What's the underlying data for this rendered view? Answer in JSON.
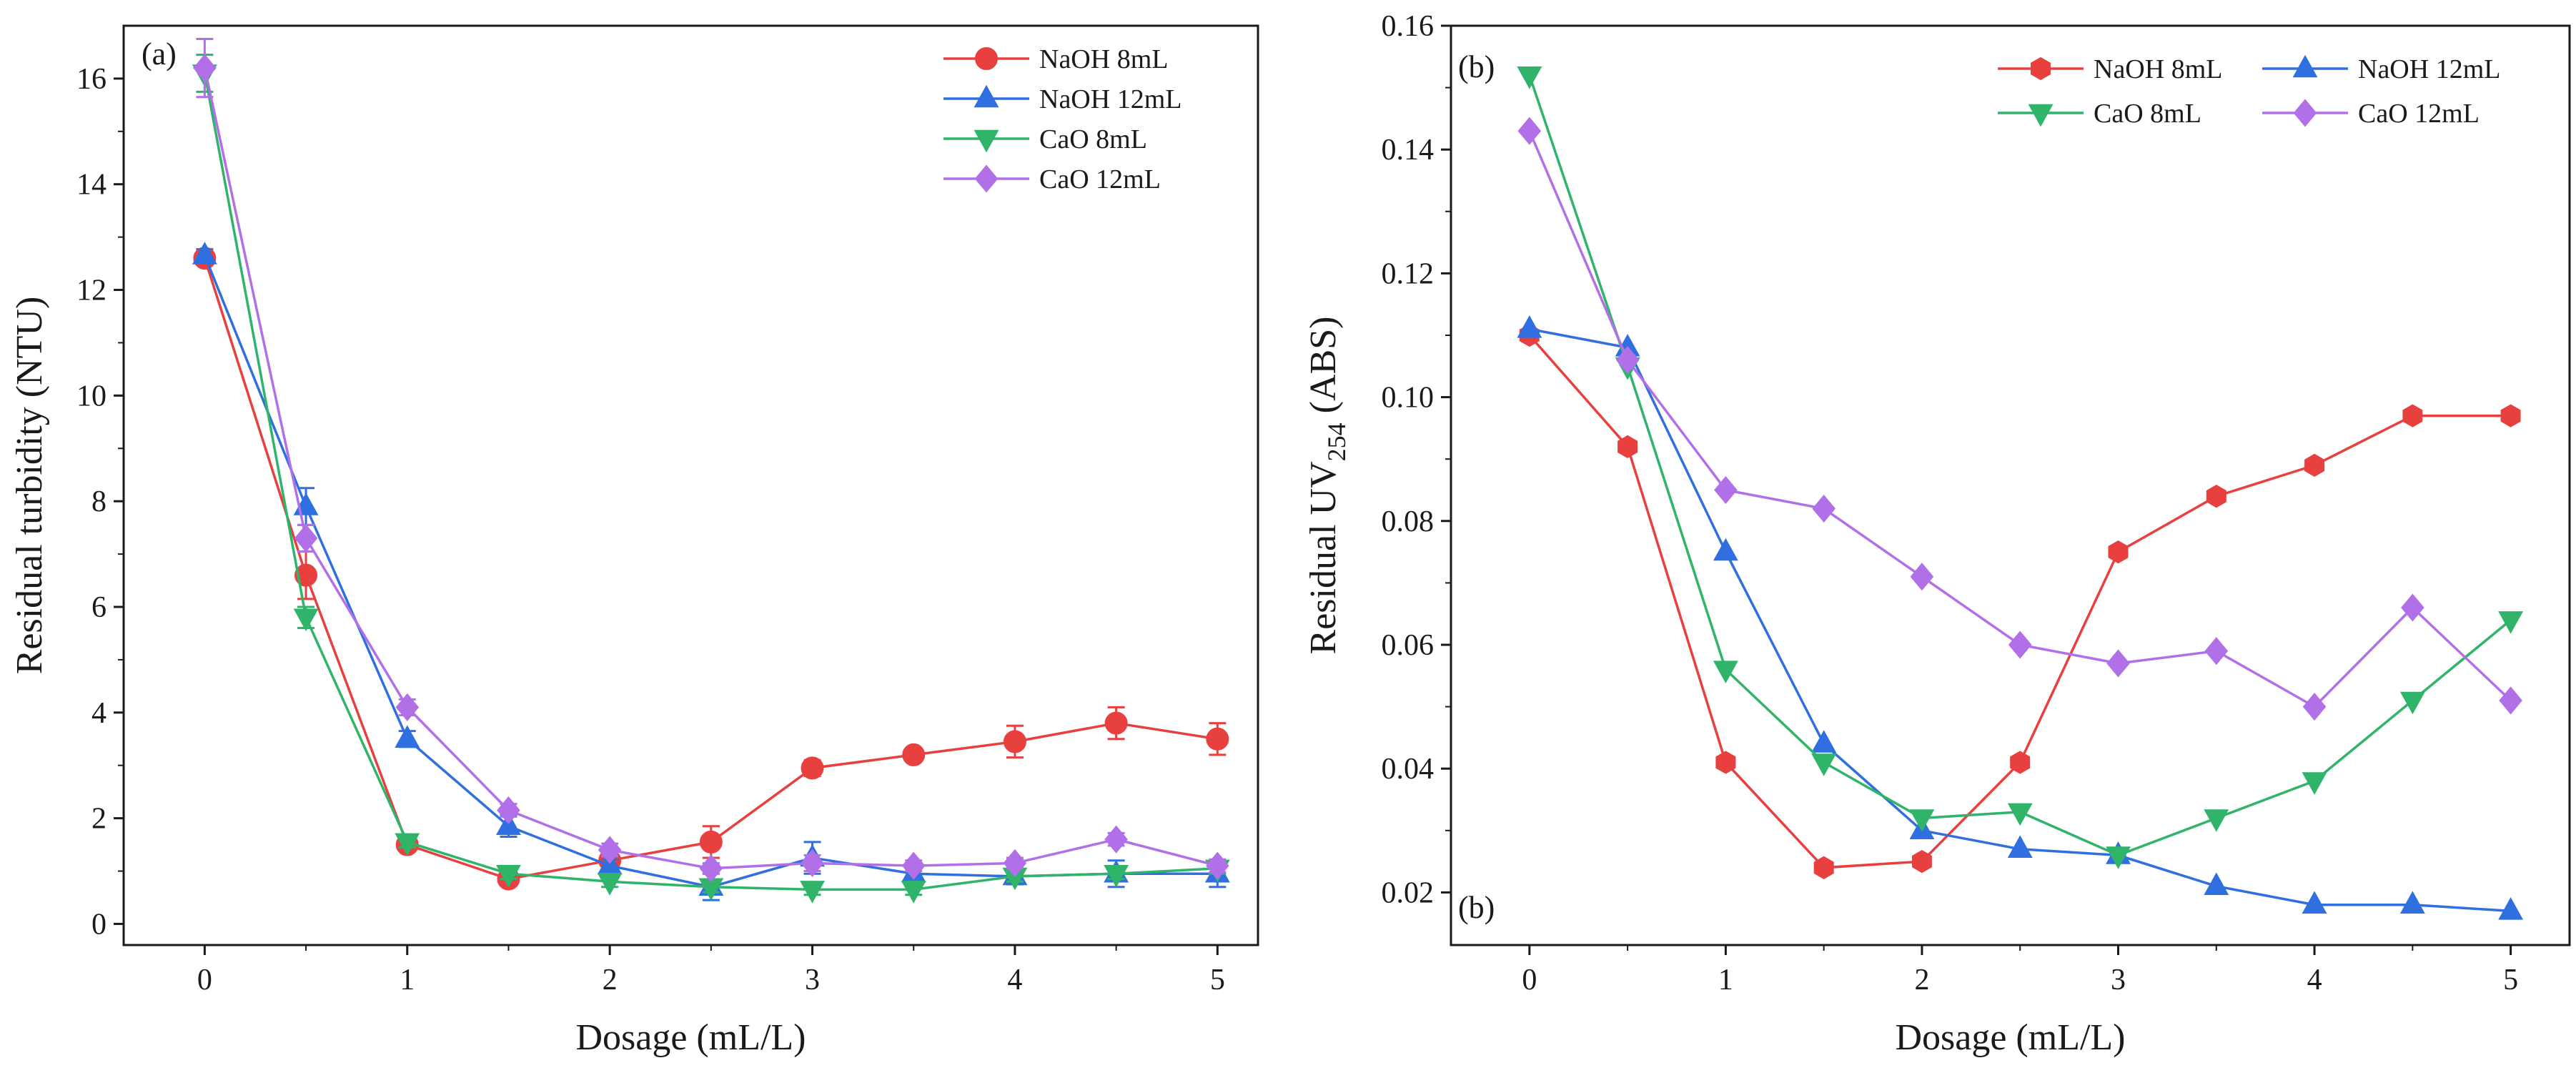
{
  "chart_data": [
    {
      "type": "line",
      "panel_label": "(a)",
      "xlabel": "Dosage (mL/L)",
      "ylabel": "Residual turbidity (NTU)",
      "xlim": [
        -0.4,
        5.2
      ],
      "ylim": [
        -0.4,
        17.0
      ],
      "xticks": [
        0,
        1,
        2,
        3,
        4,
        5
      ],
      "yticks": [
        0,
        2,
        4,
        6,
        8,
        10,
        12,
        14,
        16
      ],
      "legend_position": "top-right",
      "legend_columns": 1,
      "grid": false,
      "x": [
        0,
        0.5,
        1,
        1.5,
        2,
        2.5,
        3,
        3.5,
        4,
        4.5,
        5
      ],
      "series": [
        {
          "name": "NaOH 8mL",
          "color": "#e8403f",
          "marker": "circle",
          "values": [
            12.6,
            6.6,
            1.5,
            0.85,
            1.2,
            1.55,
            2.95,
            3.2,
            3.45,
            3.8,
            3.5
          ],
          "errors": [
            0.1,
            0.45,
            0.12,
            0.12,
            0.12,
            0.3,
            0.15,
            0.1,
            0.3,
            0.3,
            0.3
          ]
        },
        {
          "name": "NaOH 12mL",
          "color": "#2f6fe0",
          "marker": "triangle-up",
          "values": [
            12.65,
            7.9,
            3.5,
            1.85,
            1.1,
            0.7,
            1.25,
            0.95,
            0.9,
            0.95,
            0.95
          ],
          "errors": [
            0.12,
            0.35,
            0.15,
            0.2,
            0.12,
            0.25,
            0.3,
            0.12,
            0.15,
            0.25,
            0.25
          ]
        },
        {
          "name": "CaO 8mL",
          "color": "#2fb46a",
          "marker": "triangle-down",
          "values": [
            16.1,
            5.8,
            1.55,
            0.95,
            0.8,
            0.7,
            0.65,
            0.65,
            0.9,
            0.95,
            1.05
          ],
          "errors": [
            0.35,
            0.2,
            0.1,
            0.1,
            0.1,
            0.1,
            0.1,
            0.1,
            0.1,
            0.1,
            0.1
          ]
        },
        {
          "name": "CaO  12mL",
          "color": "#b270e8",
          "marker": "diamond",
          "values": [
            16.2,
            7.3,
            4.1,
            2.15,
            1.4,
            1.05,
            1.15,
            1.1,
            1.15,
            1.6,
            1.1
          ],
          "errors": [
            0.55,
            0.25,
            0.15,
            0.12,
            0.12,
            0.1,
            0.15,
            0.1,
            0.1,
            0.12,
            0.12
          ]
        }
      ]
    },
    {
      "type": "line",
      "panel_label": "(b)",
      "panel_label_lower": "(b)",
      "xlabel": "Dosage (mL/L)",
      "ylabel_main": "Residual UV",
      "ylabel_sub": "254",
      "ylabel_unit": " (ABS)",
      "xlim": [
        -0.4,
        5.3
      ],
      "ylim": [
        0.0115,
        0.16
      ],
      "xticks": [
        0,
        1,
        2,
        3,
        4,
        5
      ],
      "yticks": [
        0.02,
        0.04,
        0.06,
        0.08,
        0.1,
        0.12,
        0.14,
        0.16
      ],
      "ytick_labels": [
        "0.02",
        "0.04",
        "0.06",
        "0.08",
        "0.10",
        "0.12",
        "0.14",
        "0.16"
      ],
      "legend_position": "top-right",
      "legend_columns": 2,
      "grid": false,
      "x": [
        0,
        0.5,
        1,
        1.5,
        2,
        2.5,
        3,
        3.5,
        4,
        4.5,
        5
      ],
      "series": [
        {
          "name": "NaOH 8mL",
          "color": "#e8403f",
          "marker": "hexagon",
          "values": [
            0.11,
            0.092,
            0.041,
            0.024,
            0.025,
            0.041,
            0.075,
            0.084,
            0.089,
            0.097,
            0.097
          ]
        },
        {
          "name": "NaOH 12mL",
          "color": "#2f6fe0",
          "marker": "triangle-up",
          "values": [
            0.111,
            0.108,
            0.075,
            0.044,
            0.03,
            0.027,
            0.026,
            0.021,
            0.018,
            0.018,
            0.017
          ]
        },
        {
          "name": "CaO 8mL",
          "color": "#2fb46a",
          "marker": "triangle-down",
          "values": [
            0.152,
            0.105,
            0.056,
            0.041,
            0.032,
            0.033,
            0.026,
            0.032,
            0.038,
            0.051,
            0.064
          ]
        },
        {
          "name": "CaO 12mL",
          "color": "#b270e8",
          "marker": "diamond",
          "values": [
            0.143,
            0.106,
            0.085,
            0.082,
            0.071,
            0.06,
            0.057,
            0.059,
            0.05,
            0.066,
            0.051
          ]
        }
      ]
    }
  ]
}
